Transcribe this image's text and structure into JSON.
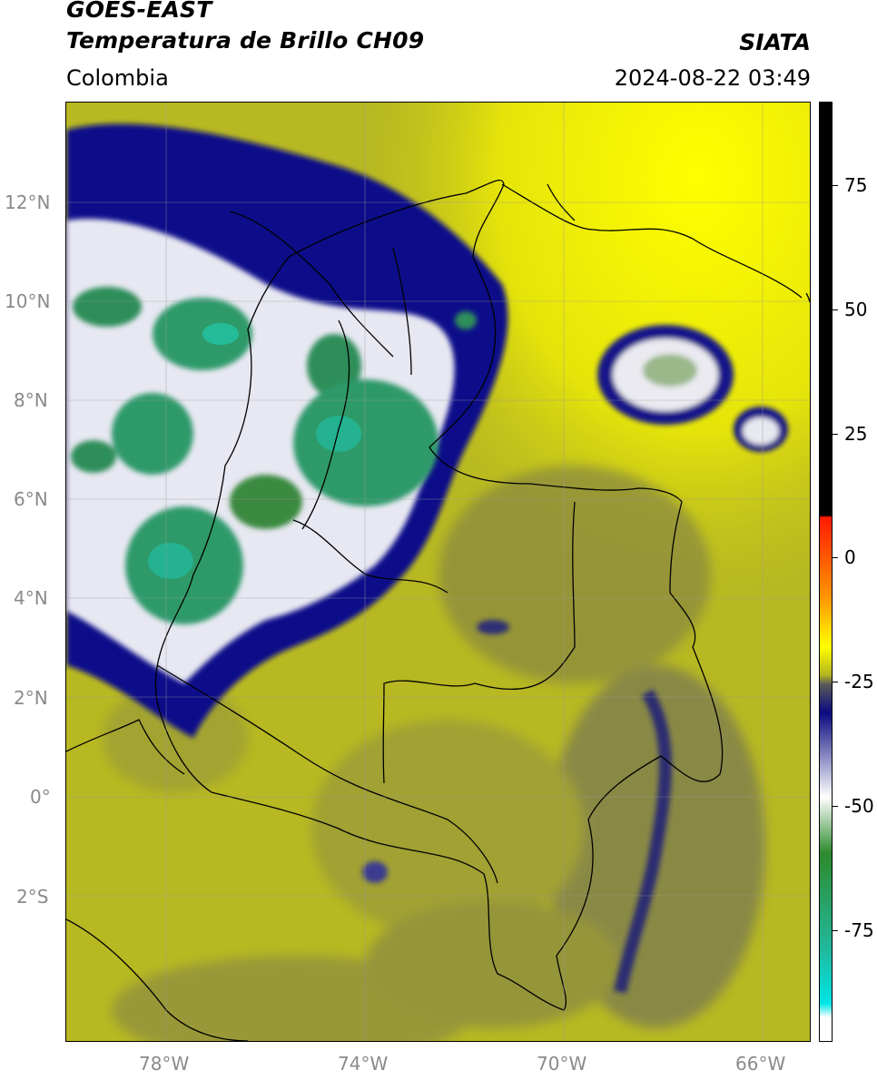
{
  "header": {
    "line1": "GOES-EAST",
    "line2": "Temperatura de Brillo CH09",
    "region": "Colombia",
    "source": "SIATA",
    "datetime": "2024-08-22 03:49"
  },
  "map": {
    "lat_labels": [
      "12°N",
      "10°N",
      "8°N",
      "6°N",
      "4°N",
      "2°N",
      "0°",
      "2°S"
    ],
    "lon_labels": [
      "78°W",
      "74°W",
      "70°W",
      "66°W"
    ]
  },
  "colorbar": {
    "ticks": [
      "75",
      "50",
      "25",
      "0",
      "-25",
      "-50",
      "-75"
    ],
    "colors": {
      "black": "#000000",
      "red": "#ff1a00",
      "orange": "#ff9a00",
      "yellow": "#ffff00",
      "olive": "#b4b420",
      "gray": "#5a5a5a",
      "navy": "#0a0a80",
      "white": "#ffffff",
      "green": "#2d8a2d",
      "teal": "#22b89a",
      "cyan": "#00e5e5"
    }
  }
}
